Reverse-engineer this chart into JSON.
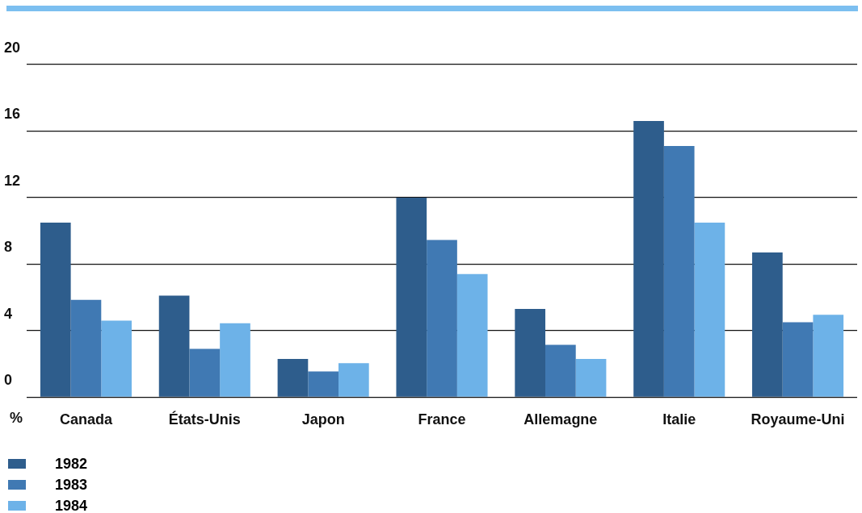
{
  "chart_data": {
    "type": "bar",
    "ylabel": "%",
    "categories": [
      "Canada",
      "États-Unis",
      "Japon",
      "France",
      "Allemagne",
      "Italie",
      "Royaume-Uni"
    ],
    "series": [
      {
        "name": "1982",
        "color": "#2e5d8c",
        "values": [
          10.5,
          6.1,
          2.3,
          12.0,
          5.3,
          16.6,
          8.7
        ]
      },
      {
        "name": "1983",
        "color": "#4079b3",
        "values": [
          5.85,
          2.9,
          1.55,
          9.45,
          3.15,
          15.1,
          4.5
        ]
      },
      {
        "name": "1984",
        "color": "#6db2e8",
        "values": [
          4.6,
          4.45,
          2.05,
          7.4,
          2.3,
          10.5,
          4.95
        ]
      }
    ],
    "ylim": [
      0,
      20
    ],
    "yticks": [
      0,
      4,
      8,
      12,
      16,
      20
    ],
    "grid": "y",
    "legend": "bottom left"
  }
}
